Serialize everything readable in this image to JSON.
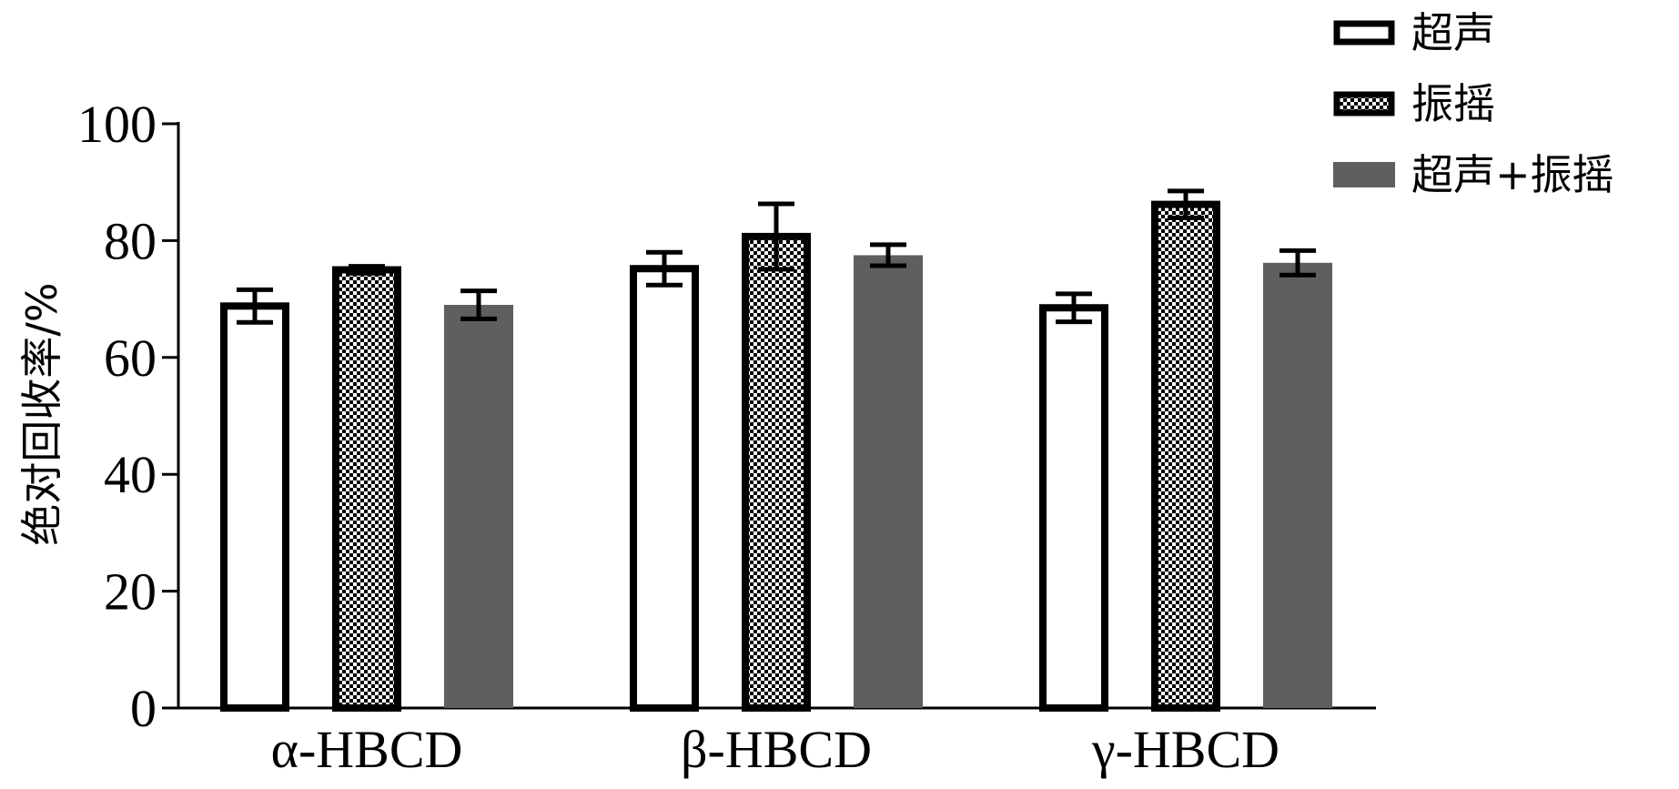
{
  "chart_data": {
    "type": "bar",
    "title": "",
    "xlabel": "",
    "ylabel": "绝对回收率/%",
    "categories": [
      "α-HBCD",
      "β-HBCD",
      "γ-HBCD"
    ],
    "ylim": [
      0,
      100
    ],
    "yticks": [
      0,
      20,
      40,
      60,
      80,
      100
    ],
    "grid": false,
    "legend_position": "top-right",
    "series": [
      {
        "name": "超声",
        "values": [
          68.8,
          75.2,
          68.5
        ],
        "error": [
          2.8,
          2.8,
          2.4
        ],
        "style": "open",
        "color": "#ffffff"
      },
      {
        "name": "振摇",
        "values": [
          75.0,
          80.7,
          86.2
        ],
        "error": [
          0.6,
          5.6,
          2.3
        ],
        "style": "checker",
        "color": "#000000"
      },
      {
        "name": "超声+振摇",
        "values": [
          69.0,
          77.5,
          76.2
        ],
        "error": [
          2.4,
          1.8,
          2.1
        ],
        "style": "solid",
        "color": "#5f5f5f"
      }
    ]
  }
}
